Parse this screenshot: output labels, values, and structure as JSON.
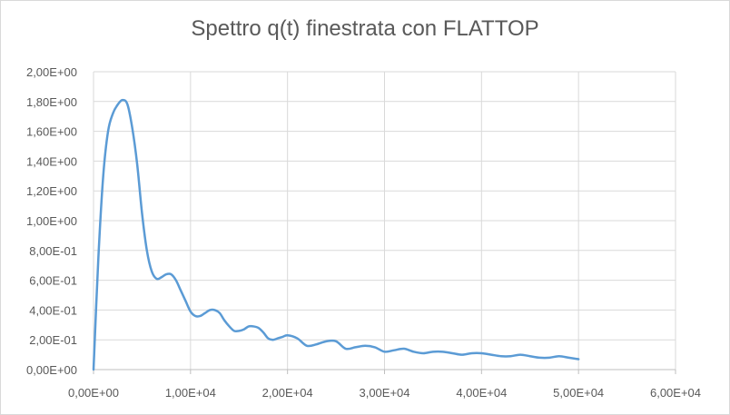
{
  "chart_data": {
    "type": "scatter",
    "title": "Spettro q(t) finestrata con FLATTOP",
    "xlabel": "",
    "ylabel": "",
    "xlim": [
      0,
      60000
    ],
    "ylim": [
      0,
      2.0
    ],
    "grid": true,
    "legend": "none",
    "x_ticks": [
      "0,00E+00",
      "1,00E+04",
      "2,00E+04",
      "3,00E+04",
      "4,00E+04",
      "5,00E+04",
      "6,00E+04"
    ],
    "y_ticks": [
      "0,00E+00",
      "2,00E-01",
      "4,00E-01",
      "6,00E-01",
      "8,00E-01",
      "1,00E+00",
      "1,20E+00",
      "1,40E+00",
      "1,60E+00",
      "1,80E+00",
      "2,00E+00"
    ],
    "series": [
      {
        "color": "#5b9bd5",
        "x": [
          0,
          500,
          1000,
          1500,
          2000,
          2500,
          3000,
          3500,
          4000,
          4500,
          5000,
          5500,
          6000,
          6500,
          7000,
          7500,
          8000,
          8500,
          9000,
          9500,
          10000,
          10500,
          11000,
          11500,
          12000,
          12500,
          13000,
          13500,
          14000,
          14500,
          15000,
          15500,
          16000,
          16500,
          17000,
          17500,
          18000,
          18500,
          19000,
          19500,
          20000,
          21000,
          22000,
          23000,
          24000,
          25000,
          26000,
          27000,
          28000,
          29000,
          30000,
          31000,
          32000,
          33000,
          34000,
          35000,
          36000,
          37000,
          38000,
          39000,
          40000,
          41000,
          42000,
          43000,
          44000,
          45000,
          46000,
          47000,
          48000,
          49000,
          50000
        ],
        "y": [
          0.0,
          0.75,
          1.3,
          1.6,
          1.72,
          1.78,
          1.81,
          1.78,
          1.62,
          1.38,
          1.05,
          0.8,
          0.66,
          0.61,
          0.62,
          0.64,
          0.64,
          0.6,
          0.53,
          0.46,
          0.39,
          0.36,
          0.36,
          0.38,
          0.4,
          0.4,
          0.38,
          0.33,
          0.29,
          0.26,
          0.26,
          0.27,
          0.29,
          0.29,
          0.28,
          0.25,
          0.21,
          0.2,
          0.21,
          0.22,
          0.23,
          0.21,
          0.16,
          0.17,
          0.19,
          0.19,
          0.14,
          0.15,
          0.16,
          0.15,
          0.12,
          0.13,
          0.14,
          0.12,
          0.11,
          0.12,
          0.12,
          0.11,
          0.1,
          0.11,
          0.11,
          0.1,
          0.09,
          0.09,
          0.1,
          0.09,
          0.08,
          0.08,
          0.09,
          0.08,
          0.07
        ]
      }
    ]
  }
}
